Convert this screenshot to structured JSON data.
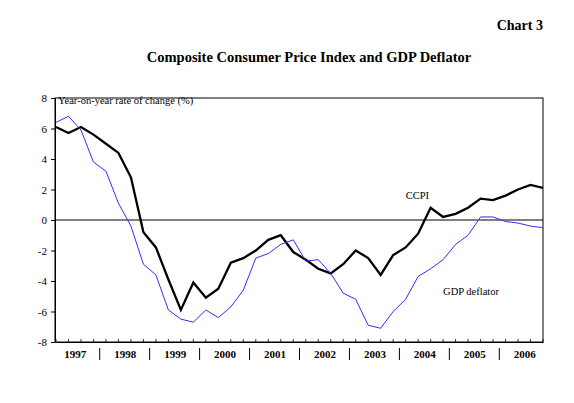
{
  "chart_data": {
    "type": "line",
    "label": "Chart 3",
    "title": "Composite Consumer Price Index and GDP Deflator",
    "y_label": "Year-on-year rate of change (%)",
    "categories": [
      "1997",
      null,
      null,
      null,
      "1998",
      null,
      null,
      null,
      "1999",
      null,
      null,
      null,
      "2000",
      null,
      null,
      null,
      "2001",
      null,
      null,
      null,
      "2002",
      null,
      null,
      null,
      "2003",
      null,
      null,
      null,
      "2004",
      null,
      null,
      null,
      "2005",
      null,
      null,
      null,
      "2006",
      null,
      null,
      null
    ],
    "series": [
      {
        "name": "CCPI",
        "color": "#000000",
        "line_style": "solid",
        "values": [
          6.1,
          5.7,
          6.1,
          5.6,
          5.0,
          4.4,
          2.8,
          -0.8,
          -1.8,
          -3.9,
          -5.9,
          -4.1,
          -5.1,
          -4.5,
          -2.8,
          -2.5,
          -2.0,
          -1.3,
          -1.0,
          -2.1,
          -2.6,
          -3.2,
          -3.5,
          -2.9,
          -2.0,
          -2.5,
          -3.6,
          -2.3,
          -1.8,
          -0.9,
          0.8,
          0.2,
          0.4,
          0.8,
          1.4,
          1.3,
          1.6,
          2.0,
          2.3,
          2.1
        ]
      },
      {
        "name": "GDP deflator",
        "color": "#3030f0",
        "line_style": "solid",
        "values": [
          6.4,
          6.8,
          5.9,
          3.8,
          3.2,
          1.1,
          -0.4,
          -2.9,
          -3.6,
          -5.9,
          -6.5,
          -6.7,
          -5.9,
          -6.4,
          -5.7,
          -4.6,
          -2.5,
          -2.2,
          -1.6,
          -1.3,
          -2.7,
          -2.6,
          -3.5,
          -4.8,
          -5.2,
          -6.9,
          -7.1,
          -6.0,
          -5.2,
          -3.7,
          -3.2,
          -2.6,
          -1.6,
          -1.0,
          0.2,
          0.2,
          -0.1,
          -0.2,
          -0.4,
          -0.5
        ]
      }
    ],
    "annotations": [
      {
        "text": "CCPI",
        "x": 28,
        "y": 1.4
      },
      {
        "text": "GDP deflator",
        "x": 31,
        "y": -4.9
      }
    ],
    "ylim": [
      -8,
      8
    ],
    "yticks": [
      -8,
      -6,
      -4,
      -2,
      0,
      2,
      4,
      6,
      8
    ],
    "grid": false
  }
}
